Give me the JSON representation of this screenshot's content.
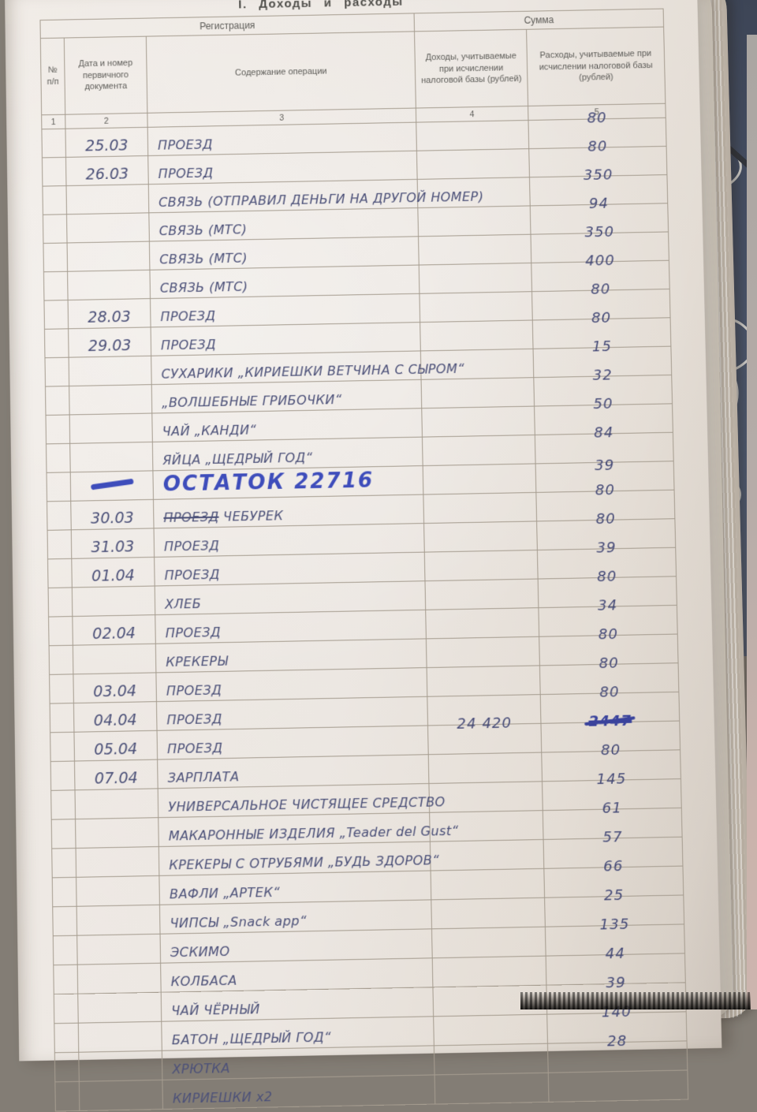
{
  "photo": {
    "paper_color": "#ece7e1",
    "ink_color": "#4b5078",
    "balance_ink_color": "#3e4dbb",
    "fabric_color": "#4a5468",
    "grid_line_color": "#a59c8f"
  },
  "title": "І. Доходы и расходы",
  "table": {
    "group_headers": {
      "registration": "Регистрация",
      "sum": "Сумма"
    },
    "columns": [
      {
        "label": "№ п/п",
        "num": "1"
      },
      {
        "label": "Дата и номер первичного документа",
        "num": "2"
      },
      {
        "label": "Содержание операции",
        "num": "3"
      },
      {
        "label": "Доходы, учитываемые при исчислении налоговой базы (рублей)",
        "num": "4"
      },
      {
        "label": "Расходы, учитываемые при исчислении налоговой базы (рублей)",
        "num": "5"
      }
    ],
    "rows": [
      {
        "date": "25.03",
        "desc": "ПРОЕЗД",
        "expense": "80"
      },
      {
        "date": "26.03",
        "desc": "ПРОЕЗД",
        "expense": "80"
      },
      {
        "desc": "СВЯЗЬ (ОТПРАВИЛ ДЕНЬГИ НА ДРУГОЙ НОМЕР)",
        "expense": "350"
      },
      {
        "desc": "СВЯЗЬ (МТС)",
        "expense": "94"
      },
      {
        "desc": "СВЯЗЬ (МТС)",
        "expense": "350"
      },
      {
        "desc": "СВЯЗЬ (МТС)",
        "expense": "400"
      },
      {
        "date": "28.03",
        "desc": "ПРОЕЗД",
        "expense": "80"
      },
      {
        "date": "29.03",
        "desc": "ПРОЕЗД",
        "expense": "80"
      },
      {
        "desc": "СУХАРИКИ „КИРИЕШКИ ВЕТЧИНА С СЫРОМ“",
        "expense": "15"
      },
      {
        "desc": "„ВОЛШЕБНЫЕ ГРИБОЧКИ“",
        "expense": "32"
      },
      {
        "desc": "ЧАЙ „КАНДИ“",
        "expense": "50"
      },
      {
        "desc": "ЯЙЦА „ЩЕДРЫЙ ГОД“",
        "expense": "84"
      },
      {
        "date_mark": "dash",
        "desc": "ОСТАТОК 22716",
        "style": "balance",
        "expense": "39"
      },
      {
        "date": "30.03",
        "desc_struck": "ПРОЕЗД",
        "desc": "ЧЕБУРЕК",
        "expense": "80"
      },
      {
        "date": "31.03",
        "desc": "ПРОЕЗД",
        "expense": "80"
      },
      {
        "date": "01.04",
        "desc": "ПРОЕЗД",
        "expense": "39"
      },
      {
        "desc": "ХЛЕБ",
        "expense": "80"
      },
      {
        "date": "02.04",
        "desc": "ПРОЕЗД",
        "expense": "34"
      },
      {
        "desc": "КРЕКЕРЫ",
        "expense": "80"
      },
      {
        "date": "03.04",
        "desc": "ПРОЕЗД",
        "expense": "80"
      },
      {
        "date": "04.04",
        "desc": "ПРОЕЗД",
        "expense": "80"
      },
      {
        "date": "05.04",
        "desc": "ПРОЕЗД",
        "income": "24 420",
        "expense_struck": "2447"
      },
      {
        "date": "07.04",
        "desc": "ЗАРПЛАТА",
        "expense": "80"
      },
      {
        "desc": "УНИВЕРСАЛЬНОЕ ЧИСТЯЩЕЕ СРЕДСТВО",
        "expense": "145"
      },
      {
        "desc": "МАКАРОННЫЕ ИЗДЕЛИЯ „Teader del Gust“",
        "expense": "61"
      },
      {
        "desc": "КРЕКЕРЫ С ОТРУБЯМИ „БУДЬ ЗДОРОВ“",
        "expense": "57"
      },
      {
        "desc": "ВАФЛИ „АРТЕК“",
        "expense": "66"
      },
      {
        "desc": "ЧИПСЫ „Snack app“",
        "expense": "25"
      },
      {
        "desc": "ЭСКИМО",
        "expense": "135"
      },
      {
        "desc": "КОЛБАСА",
        "expense": "44"
      },
      {
        "desc": "ЧАЙ ЧЁРНЫЙ",
        "expense": "39"
      },
      {
        "desc": "БАТОН „ЩЕДРЫЙ ГОД“",
        "expense": "140"
      },
      {
        "desc": "ХРЮТКА",
        "expense": "28"
      },
      {
        "desc": "КИРИЕШКИ х2",
        "expense": ""
      }
    ]
  }
}
